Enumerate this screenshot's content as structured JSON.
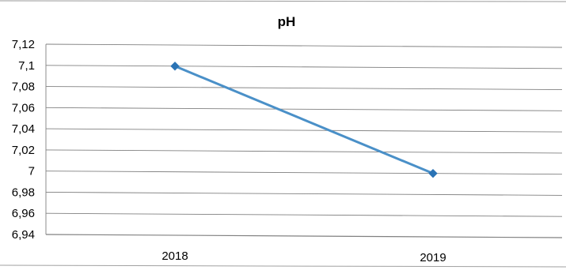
{
  "chart_data": {
    "type": "line",
    "title": "pH",
    "categories": [
      "2018",
      "2019"
    ],
    "series": [
      {
        "values": [
          7.1,
          7.0
        ]
      }
    ],
    "ylim": [
      6.94,
      7.12
    ],
    "yticks": [
      "7,12",
      "7,1",
      "7,08",
      "7,06",
      "7,04",
      "7,02",
      "7",
      "6,98",
      "6,96",
      "6,94"
    ],
    "ytick_values": [
      7.12,
      7.1,
      7.08,
      7.06,
      7.04,
      7.02,
      7.0,
      6.98,
      6.96,
      6.94
    ],
    "grid": true,
    "legend": "none",
    "colors": {
      "line": "#4a90c8",
      "marker": "#2a73b5",
      "grid": "#808080",
      "border": "#909090",
      "text": "#000000"
    }
  }
}
